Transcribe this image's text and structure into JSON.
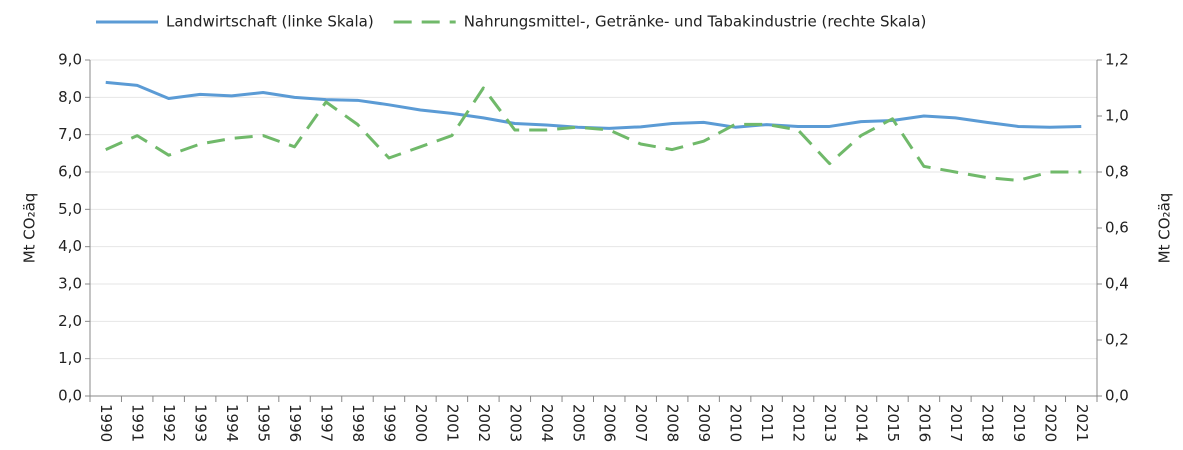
{
  "chart_data": {
    "type": "line",
    "categories": [
      "1990",
      "1991",
      "1992",
      "1993",
      "1994",
      "1995",
      "1996",
      "1997",
      "1998",
      "1999",
      "2000",
      "2001",
      "2002",
      "2003",
      "2004",
      "2005",
      "2006",
      "2007",
      "2008",
      "2009",
      "2010",
      "2011",
      "2012",
      "2013",
      "2014",
      "2015",
      "2016",
      "2017",
      "2018",
      "2019",
      "2020",
      "2021"
    ],
    "series": [
      {
        "name": "Landwirtschaft (linke Skala)",
        "color": "#5b9bd5",
        "dash": false,
        "values": [
          8.4,
          8.32,
          7.97,
          8.08,
          8.04,
          8.13,
          8.0,
          7.94,
          7.92,
          7.8,
          7.66,
          7.57,
          7.45,
          7.3,
          7.26,
          7.2,
          7.17,
          7.21,
          7.3,
          7.33,
          7.2,
          7.27,
          7.22,
          7.22,
          7.35,
          7.38,
          7.5,
          7.45,
          7.33,
          7.22,
          7.2,
          7.22
        ]
      },
      {
        "name": "Nahrungsmittel-, Getränke- und Tabakindustrie (rechte Skala)",
        "color": "#70b96a",
        "dash": true,
        "axis": "y2",
        "values": [
          0.88,
          0.93,
          0.86,
          0.9,
          0.92,
          0.93,
          0.89,
          1.05,
          0.97,
          0.85,
          0.89,
          0.93,
          1.1,
          0.95,
          0.95,
          0.96,
          0.95,
          0.9,
          0.88,
          0.91,
          0.97,
          0.97,
          0.95,
          0.83,
          0.93,
          0.99,
          0.82,
          0.8,
          0.78,
          0.77,
          0.8,
          0.8
        ]
      }
    ],
    "ylabel": "Mt CO₂äq",
    "y2label": "Mt CO₂äq",
    "ylim": [
      0,
      9
    ],
    "yticks": [
      {
        "value": 0,
        "label": "0,0"
      },
      {
        "value": 1,
        "label": "1,0"
      },
      {
        "value": 2,
        "label": "2,0"
      },
      {
        "value": 3,
        "label": "3,0"
      },
      {
        "value": 4,
        "label": "4,0"
      },
      {
        "value": 5,
        "label": "5,0"
      },
      {
        "value": 6,
        "label": "6,0"
      },
      {
        "value": 7,
        "label": "7,0"
      },
      {
        "value": 8,
        "label": "8,0"
      },
      {
        "value": 9,
        "label": "9,0"
      }
    ],
    "y2lim": [
      0,
      1.2
    ],
    "y2ticks": [
      {
        "value": 0,
        "label": "0,0"
      },
      {
        "value": 0.2,
        "label": "0,2"
      },
      {
        "value": 0.4,
        "label": "0,4"
      },
      {
        "value": 0.6,
        "label": "0,6"
      },
      {
        "value": 0.8,
        "label": "0,8"
      },
      {
        "value": 1,
        "label": "1,0"
      },
      {
        "value": 1.2,
        "label": "1,2"
      }
    ],
    "grid": true,
    "legend": "top"
  }
}
